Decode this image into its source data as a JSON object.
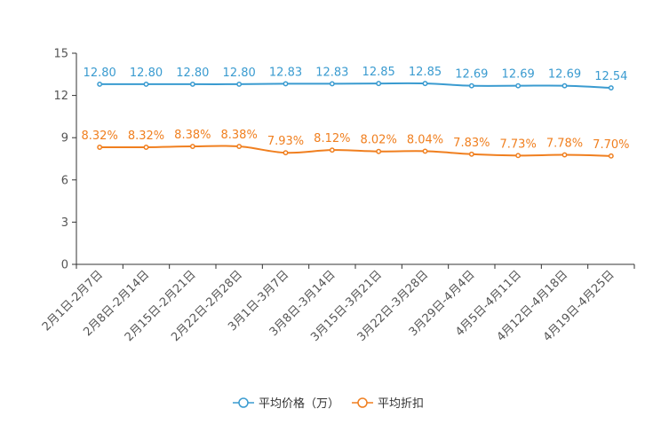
{
  "chart_data": {
    "type": "line",
    "categories": [
      "2月1日-2月7日",
      "2月8日-2月14日",
      "2月15日-2月21日",
      "2月22日-2月28日",
      "3月1日-3月7日",
      "3月8日-3月14日",
      "3月15日-3月21日",
      "3月22日-3月28日",
      "3月29日-4月4日",
      "4月5日-4月11日",
      "4月12日-4月18日",
      "4月19日-4月25日"
    ],
    "ylim": [
      0,
      15
    ],
    "yticks": [
      0,
      3,
      6,
      9,
      12,
      15
    ],
    "series": [
      {
        "name": "平均价格（万）",
        "color": "#3a9bd0",
        "values": [
          12.8,
          12.8,
          12.8,
          12.8,
          12.83,
          12.83,
          12.85,
          12.85,
          12.69,
          12.69,
          12.69,
          12.54
        ],
        "labels": [
          "12.80",
          "12.80",
          "12.80",
          "12.80",
          "12.83",
          "12.83",
          "12.85",
          "12.85",
          "12.69",
          "12.69",
          "12.69",
          "12.54"
        ]
      },
      {
        "name": "平均折扣",
        "color": "#f07f1f",
        "values": [
          8.32,
          8.32,
          8.38,
          8.38,
          7.93,
          8.12,
          8.02,
          8.04,
          7.83,
          7.73,
          7.78,
          7.7
        ],
        "labels": [
          "8.32%",
          "8.32%",
          "8.38%",
          "8.38%",
          "7.93%",
          "8.12%",
          "8.02%",
          "8.04%",
          "7.83%",
          "7.73%",
          "7.78%",
          "7.70%"
        ]
      }
    ],
    "legend_position": "bottom-center"
  }
}
